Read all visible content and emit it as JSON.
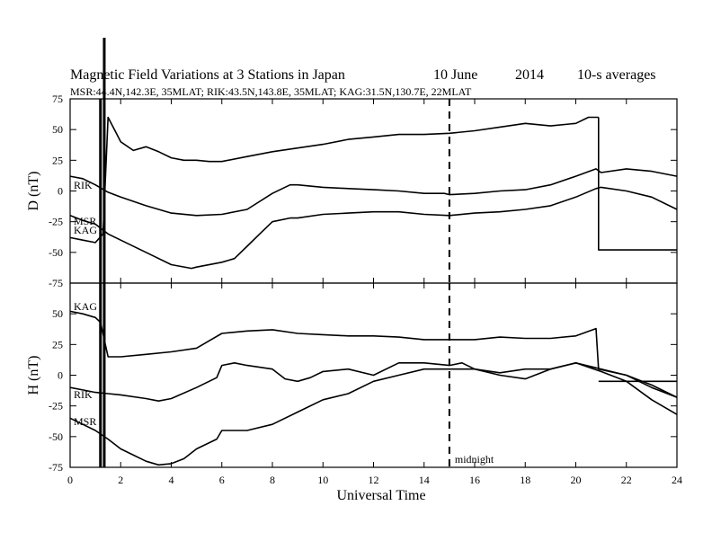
{
  "title": {
    "main": "Magnetic Field Variations at 3 Stations in Japan",
    "date": "10 June",
    "year": "2014",
    "averaging": "10-s averages",
    "stations": "MSR:44.4N,142.3E, 35MLAT;  RIK:43.5N,143.8E, 35MLAT;  KAG:31.5N,130.7E, 22MLAT"
  },
  "xlabel": "Universal Time",
  "midnight_label": "midnight",
  "chart_data": [
    {
      "type": "line",
      "panel": "D",
      "ylabel": "D (nT)",
      "ylim": [
        -75,
        75
      ],
      "yticks": [
        "75",
        "50",
        "25",
        "0",
        "-25",
        "-50",
        "-75"
      ],
      "xlim": [
        0,
        24
      ],
      "xticks": [
        "0",
        "2",
        "4",
        "6",
        "8",
        "10",
        "12",
        "14",
        "16",
        "18",
        "20",
        "22",
        "24"
      ],
      "midnight_ut": 15,
      "series": [
        {
          "name": "RIK",
          "x": [
            0,
            0.5,
            1,
            1.5,
            2,
            3,
            4,
            5,
            6,
            7,
            8,
            8.7,
            9,
            10,
            11,
            12,
            13,
            14,
            14.8,
            15,
            16,
            17,
            18,
            19,
            20,
            20.8,
            21,
            22,
            23,
            24
          ],
          "y": [
            12,
            10,
            5,
            -1,
            -5,
            -12,
            -18,
            -20,
            -19,
            -15,
            -2,
            5,
            5,
            3,
            2,
            1,
            0,
            -2,
            -2,
            -3,
            -2,
            0,
            1,
            5,
            12,
            18,
            15,
            18,
            16,
            12
          ]
        },
        {
          "name": "MSR",
          "x": [
            0,
            0.5,
            1,
            1.5,
            2,
            3,
            4,
            4.8,
            5,
            6,
            6.5,
            7,
            7.5,
            8,
            8.7,
            9,
            10,
            11,
            12,
            13,
            14,
            15,
            16,
            17,
            18,
            19,
            20,
            20.8,
            21,
            22,
            23,
            24
          ],
          "y": [
            -20,
            -24,
            -27,
            -35,
            -40,
            -50,
            -60,
            -63,
            -62,
            -58,
            -55,
            -45,
            -35,
            -25,
            -22,
            -22,
            -19,
            -18,
            -17,
            -17,
            -19,
            -20,
            -18,
            -17,
            -15,
            -12,
            -5,
            2,
            3,
            0,
            -5,
            -15
          ]
        },
        {
          "name": "KAG",
          "x": [
            0,
            0.5,
            1,
            1.3,
            1.5,
            2,
            2.5,
            3,
            3.5,
            4,
            4.5,
            5,
            5.5,
            6,
            7,
            8,
            9,
            10,
            11,
            12,
            13,
            14,
            15,
            16,
            17,
            18,
            19,
            20,
            20.5,
            20.9
          ],
          "y": [
            -38,
            -40,
            -42,
            -35,
            60,
            40,
            33,
            36,
            32,
            27,
            25,
            25,
            24,
            24,
            28,
            32,
            35,
            38,
            42,
            44,
            46,
            46,
            47,
            49,
            52,
            55,
            53,
            55,
            60,
            60
          ]
        },
        {
          "name": "",
          "x": [
            20.9,
            20.9,
            24
          ],
          "y": [
            60,
            -48,
            -48
          ]
        }
      ]
    },
    {
      "type": "line",
      "panel": "H",
      "ylabel": "H (nT)",
      "ylim": [
        -75,
        75
      ],
      "yticks": [
        "75",
        "50",
        "25",
        "0",
        "-25",
        "-50",
        "-75"
      ],
      "xlim": [
        0,
        24
      ],
      "xticks": [
        "0",
        "2",
        "4",
        "6",
        "8",
        "10",
        "12",
        "14",
        "16",
        "18",
        "20",
        "22",
        "24"
      ],
      "midnight_ut": 15,
      "series": [
        {
          "name": "KAG",
          "x": [
            0,
            0.5,
            1,
            1.2,
            1.5,
            2,
            3,
            4,
            5,
            5.5,
            6,
            7,
            8,
            9,
            10,
            11,
            12,
            13,
            14,
            15,
            16,
            17,
            18,
            19,
            20,
            20.8,
            20.9,
            22,
            23,
            24
          ],
          "y": [
            52,
            50,
            47,
            43,
            15,
            15,
            17,
            19,
            22,
            28,
            34,
            36,
            37,
            34,
            33,
            32,
            32,
            31,
            29,
            29,
            29,
            31,
            30,
            30,
            32,
            38,
            5,
            0,
            -10,
            -18
          ]
        },
        {
          "name": "RIK",
          "x": [
            0,
            0.5,
            1,
            1.5,
            2,
            3,
            3.5,
            4,
            5,
            5.8,
            6,
            6.5,
            7,
            8,
            8.5,
            9,
            9.5,
            10,
            11,
            12,
            13,
            14,
            15,
            15.5,
            16,
            17,
            18,
            19,
            20,
            21,
            22,
            23,
            24
          ],
          "y": [
            -10,
            -12,
            -14,
            -15,
            -16,
            -19,
            -21,
            -19,
            -10,
            -2,
            8,
            10,
            8,
            5,
            -3,
            -5,
            -2,
            3,
            5,
            0,
            10,
            10,
            8,
            10,
            5,
            0,
            -3,
            5,
            10,
            5,
            0,
            -8,
            -18
          ]
        },
        {
          "name": "MSR",
          "x": [
            0,
            0.5,
            1,
            1.5,
            2,
            3,
            3.5,
            4,
            4.5,
            5,
            5.8,
            6,
            7,
            8,
            9,
            10,
            11,
            12,
            13,
            14,
            15,
            16,
            17,
            18,
            19,
            20,
            21,
            22,
            23,
            24
          ],
          "y": [
            -35,
            -40,
            -45,
            -52,
            -60,
            -70,
            -73,
            -72,
            -68,
            -60,
            -52,
            -45,
            -45,
            -40,
            -30,
            -20,
            -15,
            -5,
            0,
            5,
            5,
            5,
            2,
            5,
            5,
            10,
            3,
            -5,
            -20,
            -32
          ]
        },
        {
          "name": "",
          "x": [
            20.9,
            24
          ],
          "y": [
            -5,
            -5
          ]
        }
      ]
    }
  ],
  "spike_ut": [
    1.2,
    1.35
  ],
  "colors": {
    "line": "#000000",
    "background": "#ffffff"
  }
}
